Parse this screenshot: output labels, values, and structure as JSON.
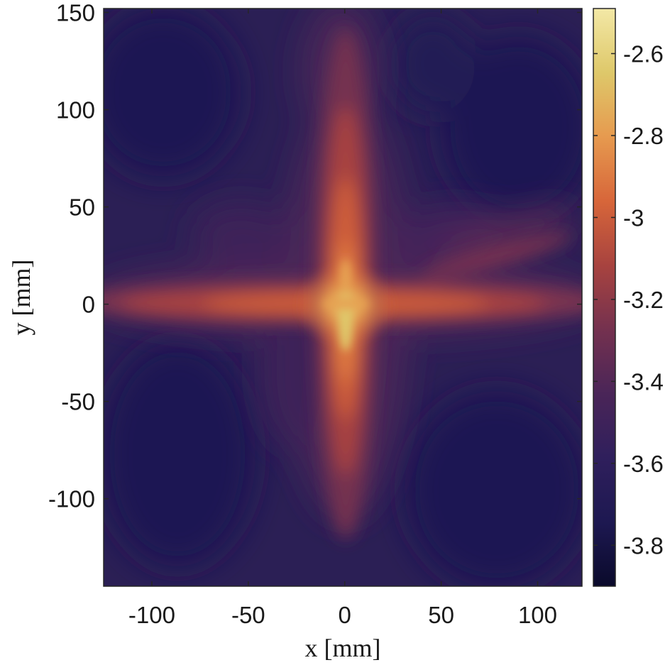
{
  "chart_data": {
    "type": "heatmap",
    "title": "",
    "xlabel": "x [mm]",
    "ylabel": "y [mm]",
    "xlim": [
      -125,
      123
    ],
    "ylim": [
      -145,
      152
    ],
    "x_ticks": [
      -100,
      -50,
      0,
      50,
      100
    ],
    "y_ticks": [
      -100,
      -50,
      0,
      50,
      100,
      150
    ],
    "colorbar": {
      "min": -3.9,
      "max": -2.49,
      "ticks": [
        -3.8,
        -3.6,
        -3.4,
        -3.2,
        -3,
        -2.8,
        -2.6
      ],
      "colormap": [
        "#0a0a2b",
        "#1d1851",
        "#2f1f5c",
        "#4a2558",
        "#74314f",
        "#a8433f",
        "#d7663a",
        "#e69a4f",
        "#dec86a",
        "#f3e8a6"
      ]
    },
    "field_description_values": {
      "background": -3.65,
      "horizontal_band_peak": -3.05,
      "vertical_band_peak": -3.1,
      "center_peak": -2.63
    },
    "grid": false,
    "legend": "colorbar-right"
  }
}
